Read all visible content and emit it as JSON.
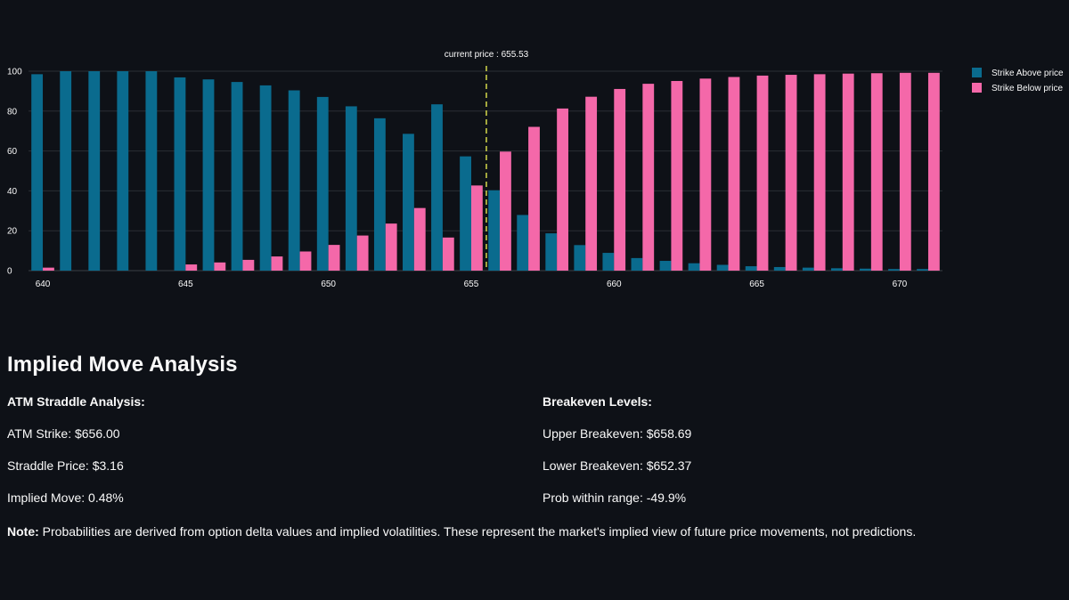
{
  "chart_data": {
    "type": "bar",
    "x": [
      640,
      641,
      642,
      643,
      644,
      645,
      646,
      647,
      648,
      649,
      650,
      651,
      652,
      653,
      654,
      655,
      656,
      657,
      658,
      659,
      660,
      661,
      662,
      663,
      664,
      665,
      666,
      667,
      668,
      669,
      670,
      671
    ],
    "series": [
      {
        "name": "Strike Above price",
        "color": "#0a6b8e",
        "values": [
          98.5,
          100,
          100,
          100,
          100,
          96.9,
          95.9,
          94.6,
          92.9,
          90.4,
          87.1,
          82.4,
          76.4,
          68.6,
          83.4,
          57.3,
          40.3,
          27.9,
          18.7,
          12.8,
          8.9,
          6.3,
          4.9,
          3.7,
          2.9,
          2.2,
          1.8,
          1.5,
          1.2,
          1.0,
          0.8,
          0.8
        ]
      },
      {
        "name": "Strike Below price",
        "color": "#f468a9",
        "values": [
          1.5,
          null,
          null,
          null,
          null,
          3.1,
          4.1,
          5.4,
          7.1,
          9.6,
          12.9,
          17.6,
          23.6,
          31.4,
          16.6,
          42.7,
          59.7,
          72.1,
          81.3,
          87.2,
          91.1,
          93.7,
          95.1,
          96.3,
          97.1,
          97.8,
          98.2,
          98.5,
          98.8,
          99.0,
          99.2,
          99.2
        ]
      }
    ],
    "xticks": [
      640,
      645,
      650,
      655,
      660,
      665,
      670
    ],
    "yticks": [
      0,
      20,
      40,
      60,
      80,
      100
    ],
    "xlim": [
      639.5,
      671.5
    ],
    "ylim": [
      0,
      100
    ],
    "current_price": 655.53,
    "current_price_label": "current price : 655.53",
    "current_price_color": "#d4d94a",
    "grid": true,
    "legend_position": "top-right"
  },
  "analysis": {
    "title": "Implied Move Analysis",
    "straddle": {
      "heading": "ATM Straddle Analysis:",
      "atm_strike": "ATM Strike: $656.00",
      "straddle_price": "Straddle Price: $3.16",
      "implied_move": "Implied Move: 0.48%"
    },
    "breakeven": {
      "heading": "Breakeven Levels:",
      "upper": "Upper Breakeven: $658.69",
      "lower": "Lower Breakeven: $652.37",
      "prob": "Prob within range: -49.9%"
    },
    "note_label": "Note:",
    "note_text": " Probabilities are derived from option delta values and implied volatilities. These represent the market's implied view of future price movements, not predictions."
  }
}
